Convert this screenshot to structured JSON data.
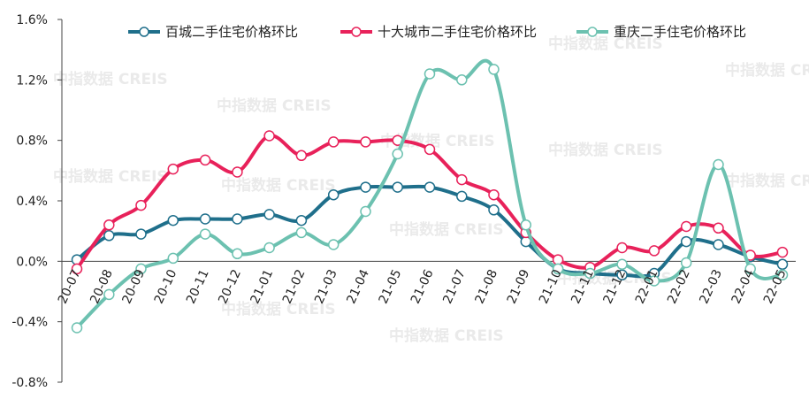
{
  "watermark": "中指数据 CREIS",
  "chart_data": {
    "type": "line",
    "title": "",
    "xlabel": "",
    "ylabel": "",
    "ylim": [
      -0.8,
      1.6
    ],
    "yticks": [
      -0.8,
      -0.4,
      0.0,
      0.4,
      0.8,
      1.2,
      1.6
    ],
    "ytick_labels": [
      "-0.8%",
      "-0.4%",
      "0.0%",
      "0.4%",
      "0.8%",
      "1.2%",
      "1.6%"
    ],
    "y_unit": "%",
    "grid": false,
    "legend_position": "top",
    "categories": [
      "20-07",
      "20-08",
      "20-09",
      "20-10",
      "20-11",
      "20-12",
      "21-01",
      "21-02",
      "21-03",
      "21-04",
      "21-05",
      "21-06",
      "21-07",
      "21-08",
      "21-09",
      "21-10",
      "21-11",
      "21-12",
      "22-01",
      "22-02",
      "22-03",
      "22-04",
      "22-05"
    ],
    "series": [
      {
        "name": "百城二手住宅价格环比",
        "color": "#1f6f8b",
        "values": [
          0.01,
          0.17,
          0.18,
          0.27,
          0.28,
          0.28,
          0.31,
          0.27,
          0.44,
          0.49,
          0.49,
          0.49,
          0.43,
          0.34,
          0.13,
          -0.05,
          -0.08,
          -0.09,
          -0.08,
          0.13,
          0.11,
          0.03,
          -0.02
        ]
      },
      {
        "name": "十大城市二手住宅价格环比",
        "color": "#e8215a",
        "values": [
          -0.05,
          0.24,
          0.37,
          0.61,
          0.67,
          0.59,
          0.83,
          0.7,
          0.79,
          0.79,
          0.8,
          0.74,
          0.54,
          0.44,
          0.19,
          0.01,
          -0.04,
          0.09,
          0.07,
          0.23,
          0.22,
          0.04,
          0.06
        ]
      },
      {
        "name": "重庆二手住宅价格环比",
        "color": "#6cc1b0",
        "values": [
          -0.44,
          -0.22,
          -0.05,
          0.02,
          0.18,
          0.05,
          0.09,
          0.19,
          0.11,
          0.33,
          0.71,
          1.24,
          1.2,
          1.27,
          0.24,
          -0.05,
          -0.08,
          -0.02,
          -0.13,
          -0.01,
          0.64,
          -0.05,
          -0.09
        ]
      }
    ]
  }
}
